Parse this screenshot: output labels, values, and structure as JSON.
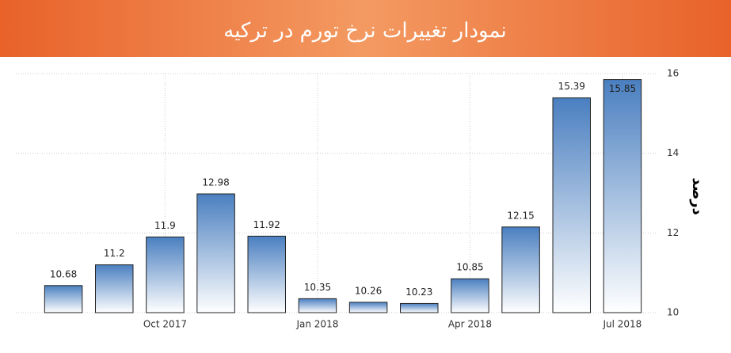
{
  "chart_data": {
    "type": "bar",
    "title": "نمودار تغییرات نرخ تورم در ترکیه",
    "y_label": "درصد",
    "categories": [
      null,
      null,
      "Oct 2017",
      null,
      null,
      "Jan 2018",
      null,
      null,
      "Apr 2018",
      null,
      null,
      "Jul 2018"
    ],
    "values": [
      10.68,
      11.2,
      11.9,
      12.98,
      11.92,
      10.35,
      10.26,
      10.23,
      10.85,
      12.15,
      15.39,
      15.85
    ],
    "color": "#4a7fc0",
    "ylim": [
      10,
      16
    ],
    "yticks": [
      10,
      12,
      14,
      16
    ],
    "grid": true
  }
}
